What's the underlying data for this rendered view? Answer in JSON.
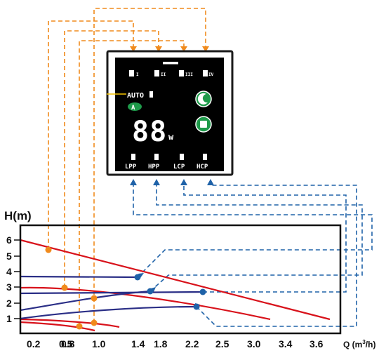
{
  "panel": {
    "auto_label": "AUTO",
    "badge_label": "A",
    "display_value": "88",
    "display_unit": "w",
    "mode_labels": [
      "LPP",
      "HPP",
      "LCP",
      "HCP"
    ],
    "top_indicators": [
      "I",
      "II",
      "III",
      "IV"
    ]
  },
  "chart_data": {
    "type": "line",
    "ylabel": "H(m)",
    "xlabel": "Q (m³/h)",
    "xlabel_text": "Q (m",
    "xlabel_sup": "3",
    "xlabel_tail": "/h)",
    "x_ticks": [
      "0.2",
      "0.5",
      "0.8",
      "1.0",
      "1.4",
      "1.8",
      "2.2",
      "2.5",
      "3.0",
      "3.4",
      "3.6"
    ],
    "y_ticks": [
      "1",
      "2",
      "3",
      "4",
      "5",
      "6"
    ],
    "ylim": [
      0,
      7
    ],
    "grid": false,
    "colors": {
      "red_curve": "#d8121b",
      "blue_curve": "#2a2e86",
      "orange_callout": "#f08a1c",
      "blue_callout": "#1f62a8"
    }
  }
}
